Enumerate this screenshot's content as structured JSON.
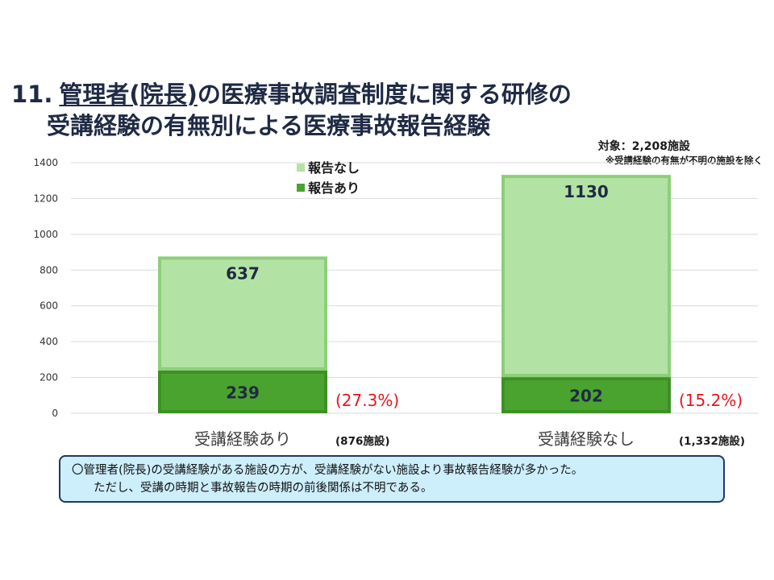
{
  "title": {
    "number": "11.",
    "line1_underlined": "管理者(院長)",
    "line1_rest": "の医療事故調査制度に関する研修の",
    "line2": "受講経験の有無別による医療事故報告経験"
  },
  "note": {
    "target": "対象：2,208施設",
    "caveat": "※受講経験の有無が不明の施設を除く"
  },
  "colors": {
    "reported": "#4aa32e",
    "reported_edge": "#3c9124",
    "not_reported": "#b3e3a4",
    "not_reported_edge": "#8ccf79",
    "value_label": "#1f2a44",
    "percent_label": "#e8141c",
    "grid": "#d9d9d9"
  },
  "chart_data": {
    "type": "bar",
    "stacked": true,
    "categories": [
      "受講経験あり",
      "受講経験なし"
    ],
    "category_counts": [
      "(876施設)",
      "(1,332施設)"
    ],
    "series": [
      {
        "name": "報告あり",
        "values": [
          239,
          202
        ]
      },
      {
        "name": "報告なし",
        "values": [
          637,
          1130
        ]
      }
    ],
    "percent_labels": [
      "(27.3%)",
      "(15.2%)"
    ],
    "ylim": [
      0,
      1400
    ],
    "yticks": [
      0,
      200,
      400,
      600,
      800,
      1000,
      1200,
      1400
    ],
    "grid": true,
    "legend_position": "top-center",
    "legend_order": [
      "報告なし",
      "報告あり"
    ]
  },
  "summary": {
    "line1": "〇管理者(院長)の受講経験がある施設の方が、受講経験がない施設より事故報告経験が多かった。",
    "line2": "ただし、受講の時期と事故報告の時期の前後関係は不明である。"
  }
}
